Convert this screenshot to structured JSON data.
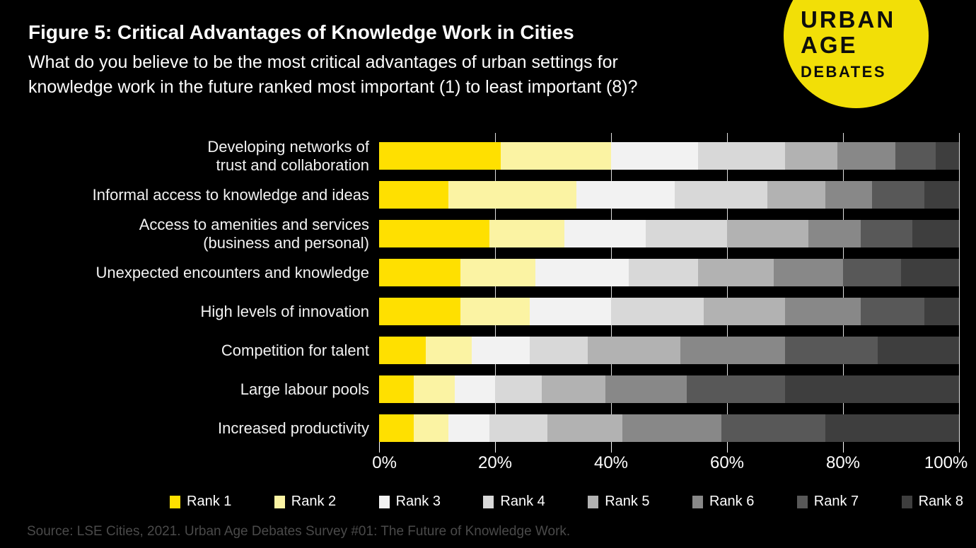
{
  "header": {
    "title": "Figure 5: Critical Advantages of Knowledge Work in Cities",
    "subtitle_lines": [
      "What do you believe to be the most critical advantages of urban settings for",
      "knowledge work in the future ranked most important (1) to least important (8)?"
    ]
  },
  "logo": {
    "lines": [
      "URBAN",
      "AGE",
      "DEBATES"
    ],
    "bg_color": "#F2DF07",
    "text_color": "#0d0d0d"
  },
  "chart_data": {
    "type": "bar",
    "stacked": true,
    "orientation": "horizontal",
    "unit": "percent",
    "title": "Figure 5: Critical Advantages of Knowledge Work in Cities",
    "xlabel": "",
    "ylabel": "",
    "xlim": [
      0,
      100
    ],
    "x_ticks": [
      "0%",
      "20%",
      "40%",
      "60%",
      "80%",
      "100%"
    ],
    "gridlines": "vertical-20pct",
    "legend_position": "bottom",
    "categories": [
      "Developing networks of trust and collaboration",
      "Informal access to knowledge and ideas",
      "Access to amenities and services (business and personal)",
      "Unexpected encounters and knowledge",
      "High levels of innovation",
      "Competition for talent",
      "Large labour pools",
      "Increased productivity"
    ],
    "category_display_lines": [
      [
        "Developing networks of",
        "trust and collaboration"
      ],
      [
        "Informal access to knowledge and ideas"
      ],
      [
        "Access to amenities and services",
        "(business and personal)"
      ],
      [
        "Unexpected encounters and knowledge"
      ],
      [
        "High levels of innovation"
      ],
      [
        "Competition for talent"
      ],
      [
        "Large labour pools"
      ],
      [
        "Increased productivity"
      ]
    ],
    "series": [
      {
        "name": "Rank 1",
        "color": "#FFE000",
        "values": [
          21,
          12,
          19,
          14,
          14,
          8,
          6,
          6
        ]
      },
      {
        "name": "Rank 2",
        "color": "#FBF3A3",
        "values": [
          19,
          22,
          13,
          13,
          12,
          8,
          7,
          6
        ]
      },
      {
        "name": "Rank 3",
        "color": "#F2F2F2",
        "values": [
          15,
          17,
          14,
          16,
          14,
          10,
          7,
          7
        ]
      },
      {
        "name": "Rank 4",
        "color": "#D8D8D8",
        "values": [
          15,
          16,
          14,
          12,
          16,
          10,
          8,
          10
        ]
      },
      {
        "name": "Rank 5",
        "color": "#B2B2B2",
        "values": [
          9,
          10,
          14,
          13,
          14,
          16,
          11,
          13
        ]
      },
      {
        "name": "Rank 6",
        "color": "#888888",
        "values": [
          10,
          8,
          9,
          12,
          13,
          18,
          14,
          17
        ]
      },
      {
        "name": "Rank 7",
        "color": "#585858",
        "values": [
          7,
          9,
          9,
          10,
          11,
          16,
          17,
          18
        ]
      },
      {
        "name": "Rank 8",
        "color": "#3E3E3E",
        "values": [
          4,
          6,
          8,
          10,
          6,
          14,
          30,
          23
        ]
      }
    ]
  },
  "footer": {
    "source": "Source: LSE Cities, 2021. Urban Age Debates Survey #01: The Future of Knowledge Work."
  }
}
